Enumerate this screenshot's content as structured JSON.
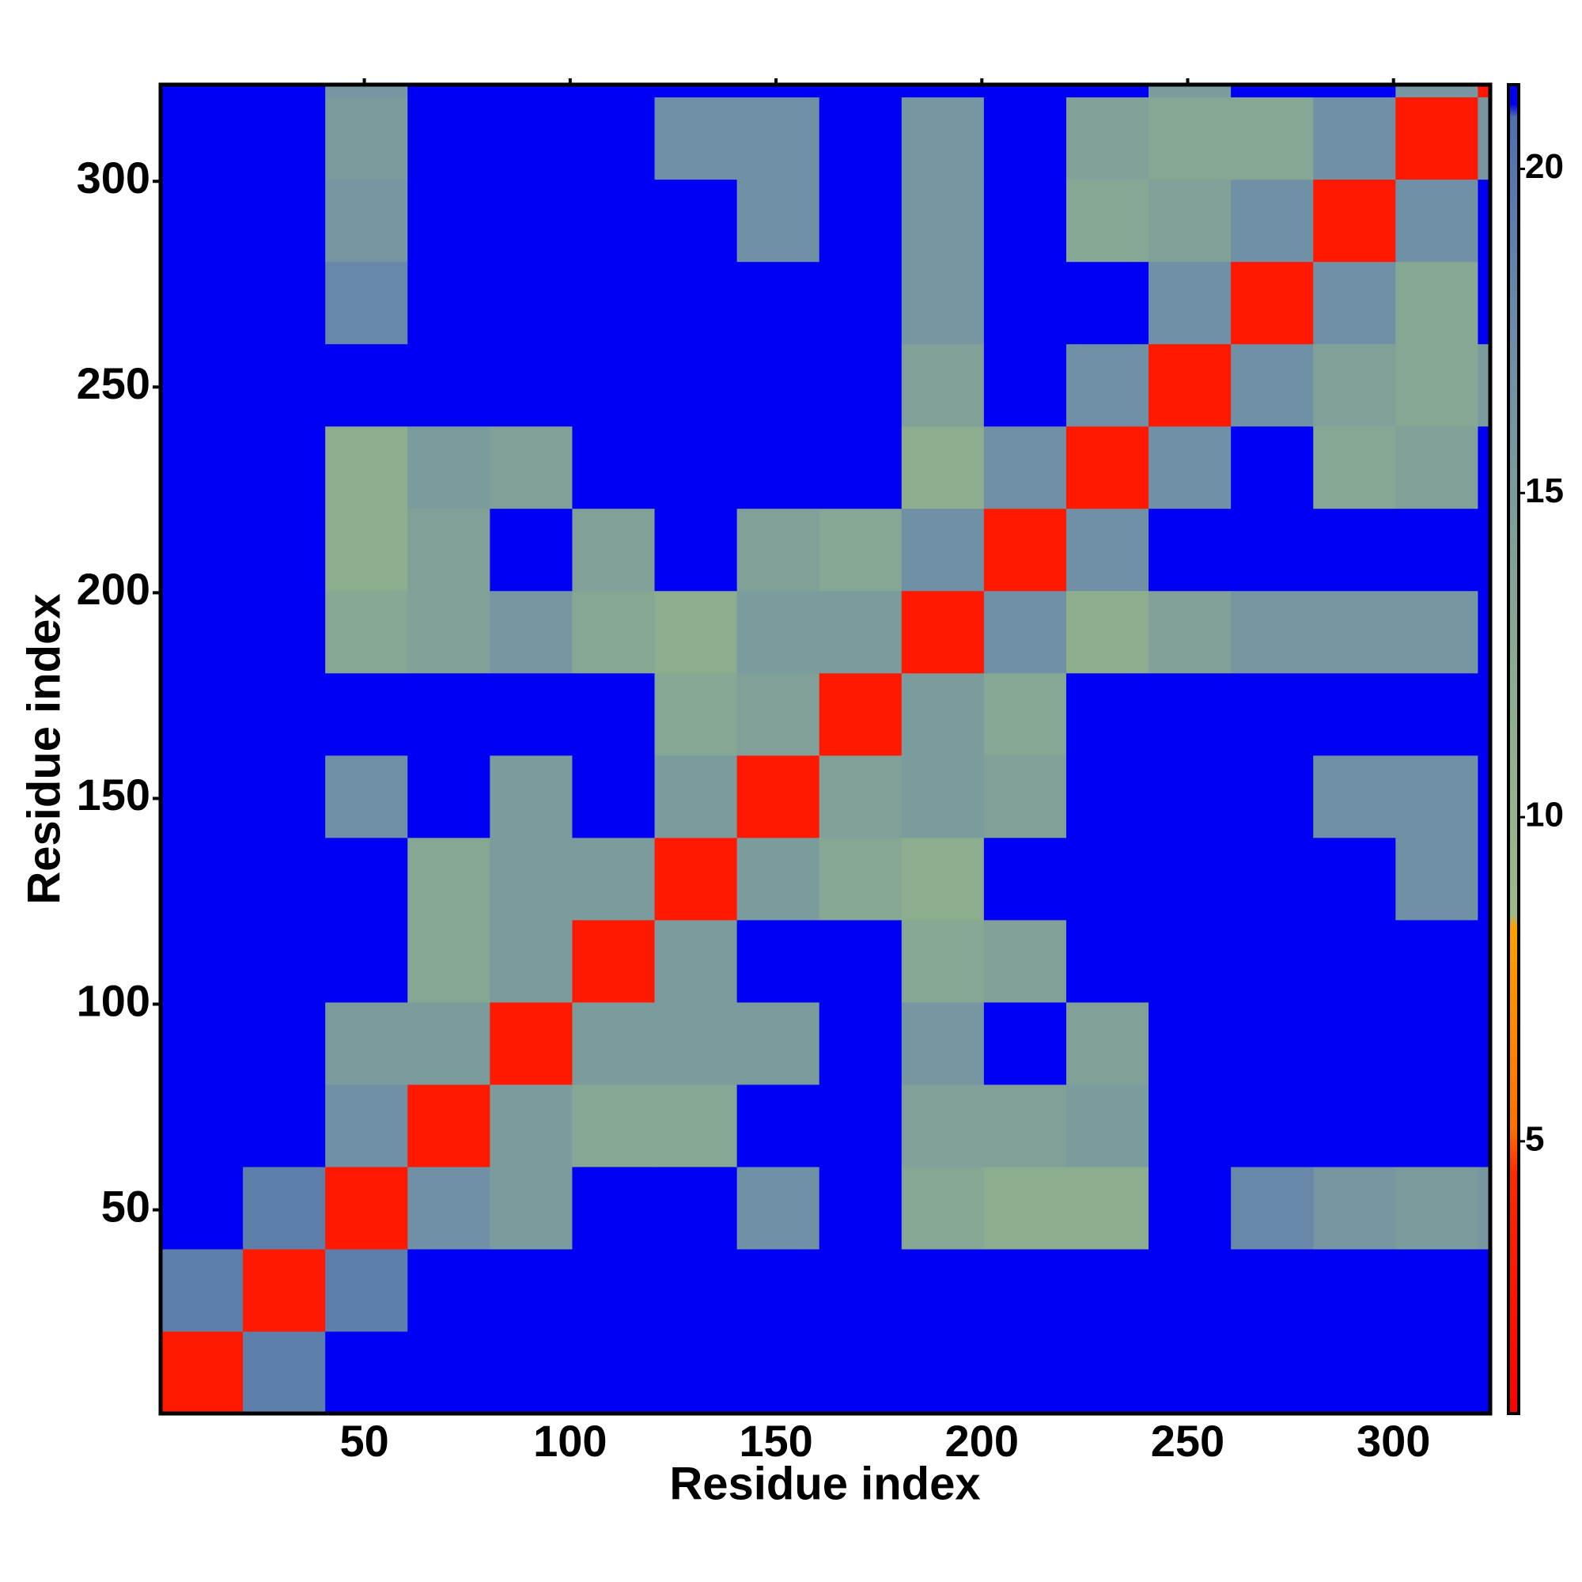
{
  "chart_data": {
    "type": "heatmap",
    "xlabel": "Residue index",
    "ylabel": "Residue index",
    "x_bins": [
      0.5,
      20.5,
      40.5,
      60.5,
      80.5,
      100.5,
      120.5,
      140.5,
      160.5,
      180.5,
      200.5,
      220.5,
      240.5,
      260.5,
      280.5,
      300.5,
      320.5,
      323.5
    ],
    "y_bins": [
      0.5,
      20.5,
      40.5,
      60.5,
      80.5,
      100.5,
      120.5,
      140.5,
      160.5,
      180.5,
      200.5,
      220.5,
      240.5,
      260.5,
      280.5,
      300.5,
      320.5,
      323.5
    ],
    "z": [
      [
        3,
        19,
        21,
        21,
        21,
        21,
        21,
        21,
        21,
        21,
        21,
        21,
        21,
        21,
        21,
        21,
        21
      ],
      [
        19,
        3,
        19,
        21,
        21,
        21,
        21,
        21,
        21,
        21,
        21,
        21,
        21,
        21,
        21,
        21,
        21
      ],
      [
        21,
        19,
        3,
        17,
        15,
        21,
        21,
        17,
        21,
        13,
        12,
        12,
        21,
        18,
        16,
        15,
        16
      ],
      [
        21,
        21,
        17,
        3,
        15,
        13,
        13,
        21,
        21,
        14,
        14,
        15,
        21,
        21,
        21,
        21,
        21
      ],
      [
        21,
        21,
        15,
        15,
        3,
        15,
        15,
        15,
        21,
        16,
        21,
        14,
        21,
        21,
        21,
        21,
        21
      ],
      [
        21,
        21,
        21,
        13,
        15,
        3,
        15,
        21,
        21,
        13,
        14,
        21,
        21,
        21,
        21,
        21,
        21
      ],
      [
        21,
        21,
        21,
        13,
        15,
        15,
        3,
        15,
        13,
        12,
        21,
        21,
        21,
        21,
        21,
        17,
        21
      ],
      [
        21,
        21,
        17,
        21,
        15,
        21,
        15,
        3,
        14,
        15,
        14,
        21,
        21,
        21,
        17,
        17,
        21
      ],
      [
        21,
        21,
        21,
        21,
        21,
        21,
        13,
        14,
        3,
        15,
        13,
        21,
        21,
        21,
        21,
        21,
        21
      ],
      [
        21,
        21,
        13,
        14,
        16,
        13,
        12,
        15,
        15,
        3,
        17,
        12,
        14,
        16,
        16,
        16,
        21
      ],
      [
        21,
        21,
        12,
        14,
        21,
        14,
        21,
        14,
        13,
        17,
        3,
        17,
        21,
        21,
        21,
        21,
        21
      ],
      [
        21,
        21,
        12,
        15,
        14,
        21,
        21,
        21,
        21,
        12,
        17,
        3,
        17,
        21,
        13,
        14,
        21
      ],
      [
        21,
        21,
        21,
        21,
        21,
        21,
        21,
        21,
        21,
        14,
        21,
        17,
        3,
        17,
        14,
        13,
        15
      ],
      [
        21,
        21,
        18,
        21,
        21,
        21,
        21,
        21,
        21,
        16,
        21,
        21,
        17,
        3,
        17,
        13,
        21
      ],
      [
        21,
        21,
        16,
        21,
        21,
        21,
        21,
        17,
        21,
        16,
        21,
        13,
        14,
        17,
        3,
        17,
        21
      ],
      [
        21,
        21,
        15,
        21,
        21,
        21,
        17,
        17,
        21,
        16,
        21,
        14,
        13,
        13,
        17,
        3,
        16
      ],
      [
        21,
        21,
        16,
        21,
        21,
        21,
        21,
        21,
        21,
        21,
        21,
        21,
        15,
        21,
        21,
        16,
        3
      ]
    ],
    "xlim": [
      0.5,
      323.5
    ],
    "ylim": [
      0.5,
      323.5
    ],
    "xticks": [
      50,
      100,
      150,
      200,
      250,
      300
    ],
    "yticks": [
      50,
      100,
      150,
      200,
      250,
      300
    ],
    "clim": [
      0.8,
      21.3
    ],
    "cticks": [
      5,
      10,
      15,
      20
    ],
    "colorscale": [
      [
        0.8,
        "#ff0000"
      ],
      [
        4.5,
        "#ff2a00"
      ],
      [
        5.2,
        "#ff7000"
      ],
      [
        8.3,
        "#ffa000"
      ],
      [
        8.5,
        "#9cb98a"
      ],
      [
        12,
        "#8cad8e"
      ],
      [
        17,
        "#7090a6"
      ],
      [
        20.8,
        "#4f70b0"
      ],
      [
        21.0,
        "#0000f5"
      ],
      [
        21.3,
        "#0000f5"
      ]
    ]
  }
}
